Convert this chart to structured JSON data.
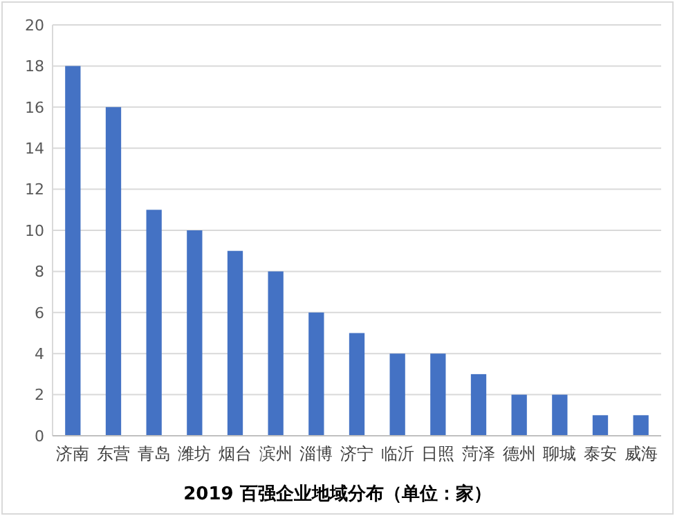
{
  "chart_data": {
    "type": "bar",
    "title": "2019 百强企业地域分布（单位：家）",
    "categories": [
      "济南",
      "东营",
      "青岛",
      "潍坊",
      "烟台",
      "滨州",
      "淄博",
      "济宁",
      "临沂",
      "日照",
      "菏泽",
      "德州",
      "聊城",
      "泰安",
      "威海"
    ],
    "values": [
      18,
      16,
      11,
      10,
      9,
      8,
      6,
      5,
      4,
      4,
      3,
      2,
      2,
      1,
      1
    ],
    "color": "#4472c4",
    "ylim": [
      0,
      20
    ],
    "yticks": [
      0,
      2,
      4,
      6,
      8,
      10,
      12,
      14,
      16,
      18,
      20
    ],
    "grid": "y"
  }
}
